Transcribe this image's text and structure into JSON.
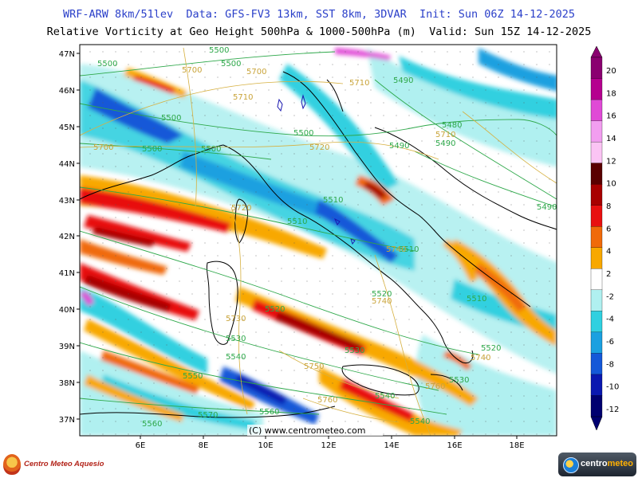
{
  "header": {
    "line1": "WRF-ARW 8km/51lev  Data: GFS-FV3 13km, SST 8km, 3DVAR  Init: Sun 06Z 14-12-2025",
    "line2": "Relative Vorticity at Geo Height 500hPa & 1000-500hPa (m)  Valid: Sun 15Z 14-12-2025"
  },
  "map": {
    "lat_ticks": [
      "47N",
      "46N",
      "45N",
      "44N",
      "43N",
      "42N",
      "41N",
      "40N",
      "39N",
      "38N",
      "37N"
    ],
    "lon_ticks": [
      "6E",
      "8E",
      "10E",
      "12E",
      "14E",
      "16E",
      "18E"
    ],
    "credit": "(C) www.centrometeo.com",
    "colors": {
      "frame": "#000000",
      "geopotential_500": "#2ea84a",
      "thickness": "#d6b040"
    }
  },
  "contour_labels_500hPa": [
    "5500",
    "5500",
    "5500",
    "5500",
    "5500",
    "5500",
    "5500",
    "5490",
    "5480",
    "5490",
    "5490",
    "5510",
    "5510",
    "5510",
    "5520",
    "5510",
    "5520",
    "5530",
    "5530",
    "5540",
    "5520",
    "5530",
    "5540",
    "5550",
    "5560",
    "5570",
    "5560",
    "5540",
    "5490"
  ],
  "contour_labels_thickness": [
    "5700",
    "5700",
    "5710",
    "5700",
    "5720",
    "5710",
    "5710",
    "5720",
    "5730",
    "5740",
    "5740",
    "5750",
    "5760",
    "5760",
    "5740"
  ],
  "colorbar": {
    "labels": [
      "20",
      "18",
      "16",
      "14",
      "12",
      "10",
      "8",
      "6",
      "4",
      "2",
      "-2",
      "-4",
      "-6",
      "-8",
      "-10",
      "-12"
    ],
    "colors": [
      "#8a0070",
      "#b5008f",
      "#e04ad6",
      "#f29ef0",
      "#fbc4f4",
      "#5a0000",
      "#a80000",
      "#e81010",
      "#f06a0a",
      "#f8a800",
      "#ffffff",
      "#b0f0f0",
      "#30d0e0",
      "#1aa0e0",
      "#1458d8",
      "#0a18b0",
      "#000070"
    ]
  },
  "logos": {
    "left": "Centro Meteo Aquesio",
    "right_a": "centro",
    "right_b": "meteo"
  }
}
